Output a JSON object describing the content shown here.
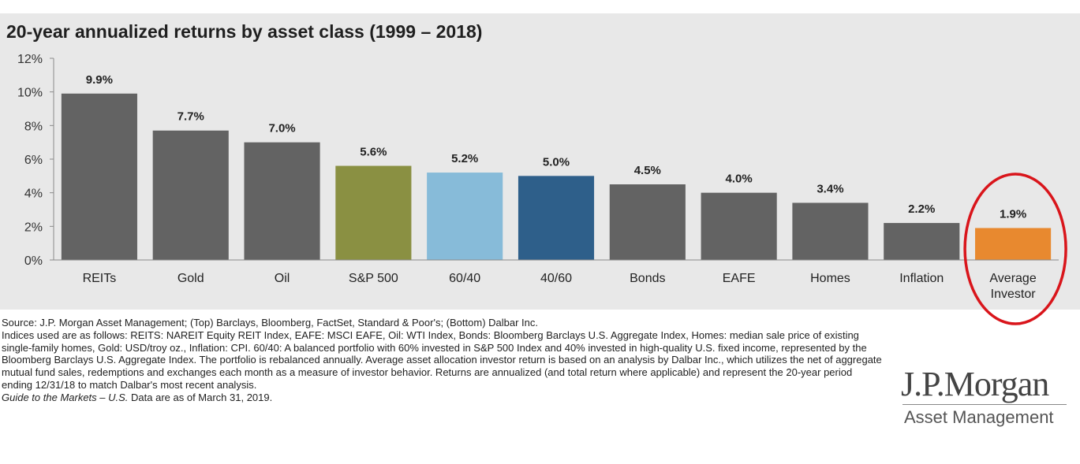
{
  "title": "20-year annualized returns by asset class (1999 – 2018)",
  "chart_data": {
    "type": "bar",
    "categories": [
      "REITs",
      "Gold",
      "Oil",
      "S&P 500",
      "60/40",
      "40/60",
      "Bonds",
      "EAFE",
      "Homes",
      "Inflation",
      "Average Investor"
    ],
    "category_lines": [
      [
        "REITs"
      ],
      [
        "Gold"
      ],
      [
        "Oil"
      ],
      [
        "S&P 500"
      ],
      [
        "60/40"
      ],
      [
        "40/60"
      ],
      [
        "Bonds"
      ],
      [
        "EAFE"
      ],
      [
        "Homes"
      ],
      [
        "Inflation"
      ],
      [
        "Average",
        "Investor"
      ]
    ],
    "values": [
      9.9,
      7.7,
      7.0,
      5.6,
      5.2,
      5.0,
      4.5,
      4.0,
      3.4,
      2.2,
      1.9
    ],
    "data_labels": [
      "9.9%",
      "7.7%",
      "7.0%",
      "5.6%",
      "5.2%",
      "5.0%",
      "4.5%",
      "4.0%",
      "3.4%",
      "2.2%",
      "1.9%"
    ],
    "colors": [
      "#636363",
      "#636363",
      "#636363",
      "#8a9042",
      "#87bbd9",
      "#2e5f8a",
      "#636363",
      "#636363",
      "#636363",
      "#636363",
      "#e8892f"
    ],
    "ylim": [
      0,
      12
    ],
    "y_ticks": [
      0,
      2,
      4,
      6,
      8,
      10,
      12
    ],
    "y_tick_labels": [
      "0%",
      "2%",
      "4%",
      "6%",
      "8%",
      "10%",
      "12%"
    ],
    "xlabel": "",
    "ylabel": "",
    "grid": false,
    "highlight": {
      "category": "Average Investor",
      "shape": "ellipse",
      "color": "#d9151b"
    }
  },
  "footnotes": {
    "source": "Source: J.P. Morgan Asset Management; (Top) Barclays, Bloomberg, FactSet, Standard & Poor's; (Bottom) Dalbar Inc.",
    "indices": "Indices used are as follows: REITS: NAREIT Equity REIT Index, EAFE: MSCI EAFE, Oil: WTI Index, Bonds: Bloomberg Barclays U.S. Aggregate Index, Homes: median sale price of existing single-family homes, Gold: USD/troy oz., Inflation: CPI. 60/40: A balanced portfolio with 60% invested in S&P 500 Index and 40% invested in high-quality U.S. fixed income, represented by the Bloomberg Barclays U.S. Aggregate Index. The portfolio is rebalanced annually. Average asset allocation investor return is based on an analysis by Dalbar Inc., which utilizes the net of aggregate mutual fund sales, redemptions and exchanges each month as a measure of investor behavior. Returns are annualized (and total return where applicable) and represent the 20-year period ending 12/31/18 to match Dalbar's most recent analysis.",
    "guide_italic": "Guide to the Markets – U.S.",
    "guide_rest": " Data are as of March 31, 2019."
  },
  "logo": {
    "main": "J.P.Morgan",
    "sub": "Asset Management"
  }
}
